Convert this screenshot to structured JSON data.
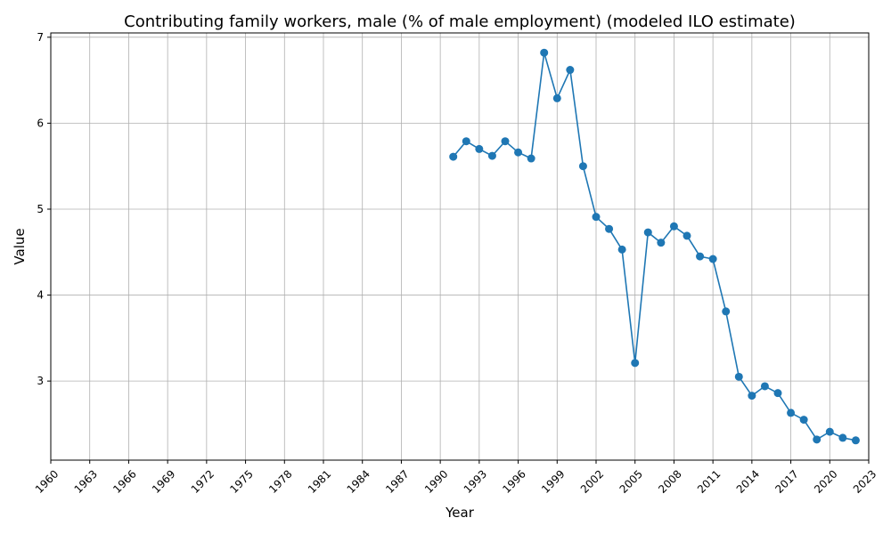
{
  "chart_data": {
    "type": "line",
    "title": "Contributing family workers, male (% of male employment) (modeled ILO estimate)",
    "xlabel": "Year",
    "ylabel": "Value",
    "xlim": [
      1960,
      2023
    ],
    "ylim": [
      2.08,
      7.05
    ],
    "xticks": [
      1960,
      1963,
      1966,
      1969,
      1972,
      1975,
      1978,
      1981,
      1984,
      1987,
      1990,
      1993,
      1996,
      1999,
      2002,
      2005,
      2008,
      2011,
      2014,
      2017,
      2020,
      2023
    ],
    "yticks": [
      3,
      4,
      5,
      6,
      7
    ],
    "grid": true,
    "color": "#1f77b4",
    "series": [
      {
        "x": [
          1991,
          1992,
          1993,
          1994,
          1995,
          1996,
          1997,
          1998,
          1999,
          2000,
          2001,
          2002,
          2003,
          2004,
          2005,
          2006,
          2007,
          2008,
          2009,
          2010,
          2011,
          2012,
          2013,
          2014,
          2015,
          2016,
          2017,
          2018,
          2019,
          2020,
          2021,
          2022
        ],
        "values": [
          5.61,
          5.79,
          5.7,
          5.62,
          5.79,
          5.66,
          5.59,
          6.82,
          6.29,
          6.62,
          5.5,
          4.91,
          4.77,
          4.53,
          3.21,
          4.73,
          4.61,
          4.8,
          4.69,
          4.45,
          4.42,
          3.81,
          3.05,
          2.83,
          2.94,
          2.86,
          2.63,
          2.55,
          2.32,
          2.41,
          2.34,
          2.31
        ]
      }
    ]
  }
}
